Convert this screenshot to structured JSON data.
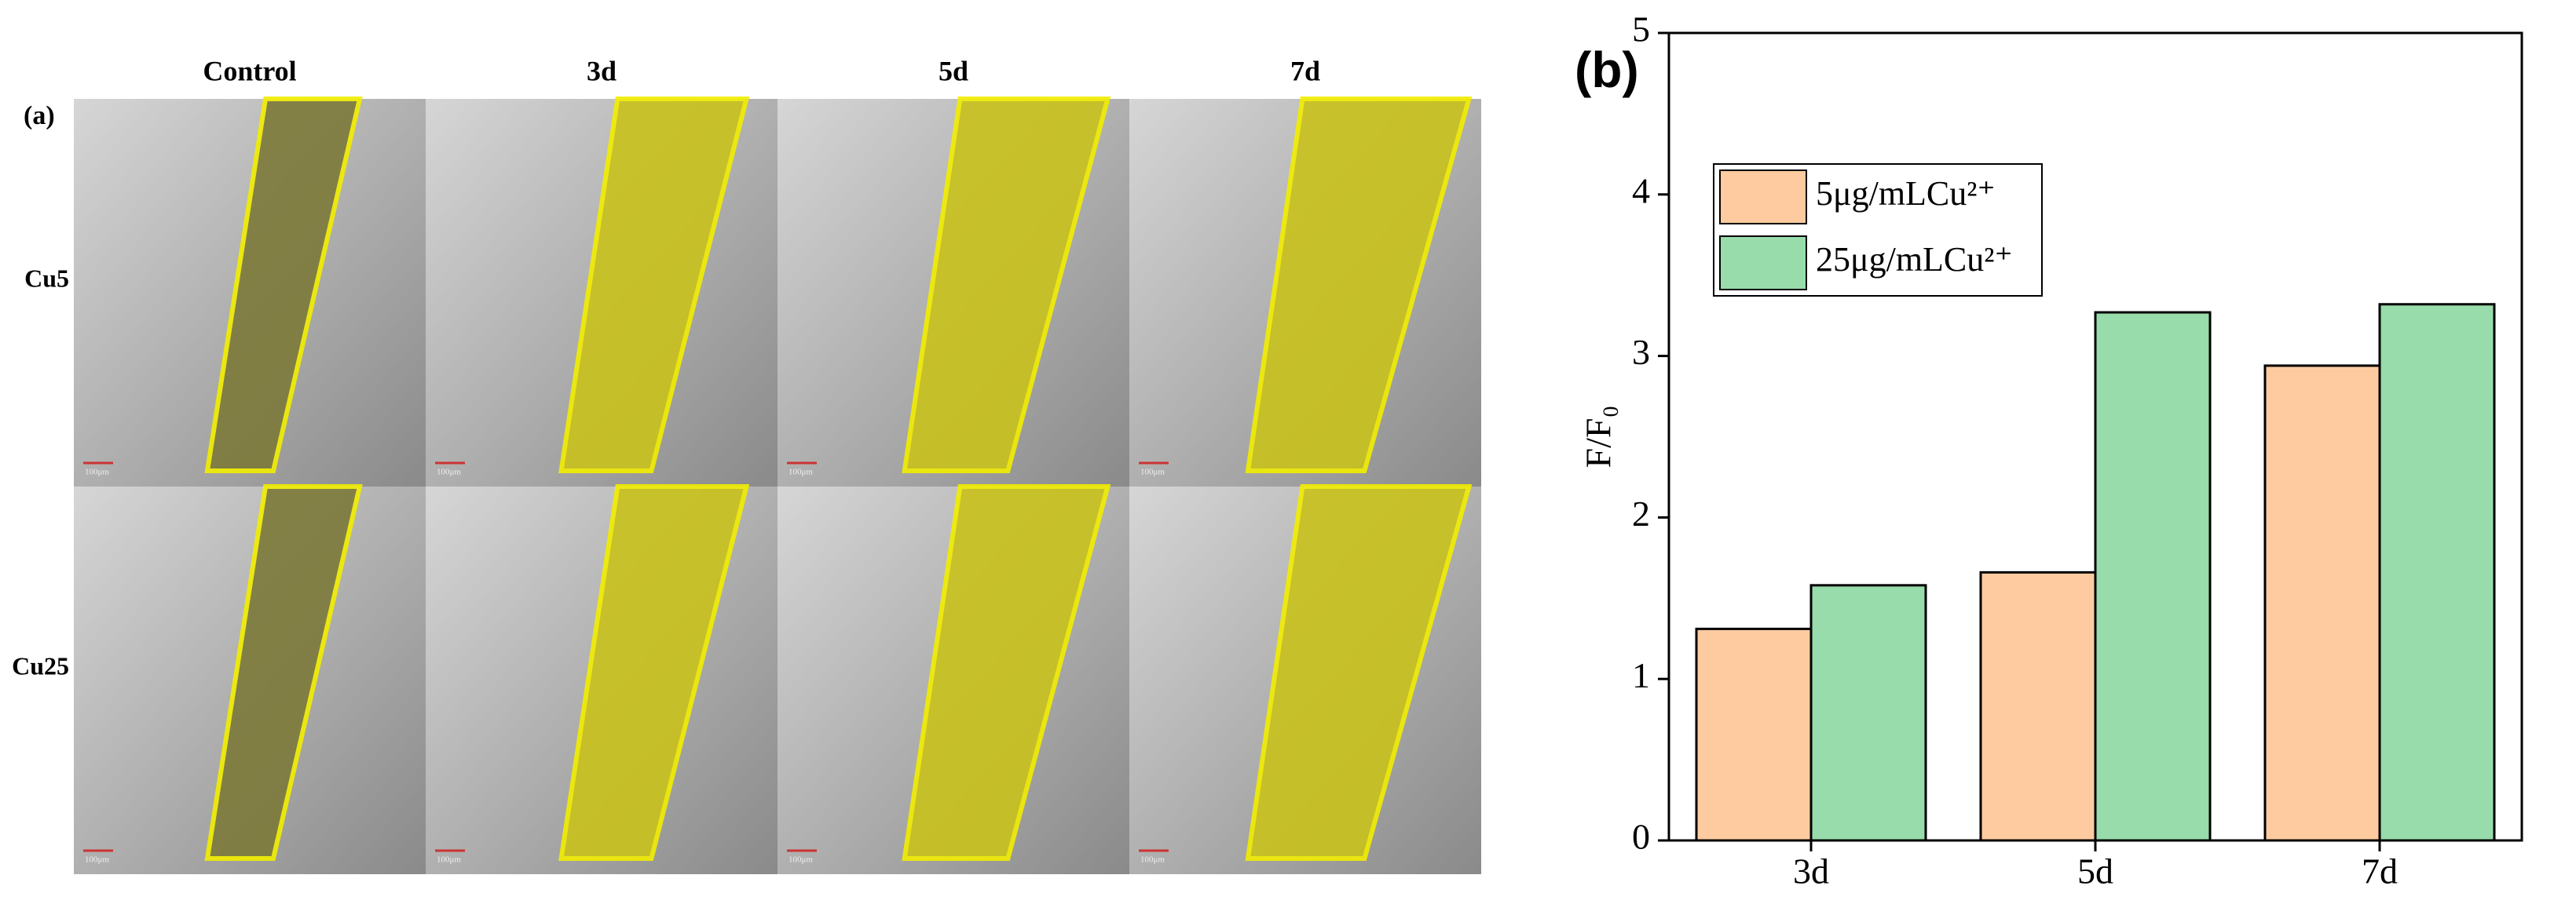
{
  "panel_a": {
    "label": "(a)",
    "columns": [
      "Control",
      "3d",
      "5d",
      "7d"
    ],
    "rows": [
      "Cu5",
      "Cu25"
    ],
    "scale_label": "100μm"
  },
  "chart_data": {
    "type": "bar",
    "panel_label": "(b)",
    "y_label": "F/F₀",
    "categories": [
      "3d",
      "5d",
      "7d"
    ],
    "series": [
      {
        "name": "5μg/mLCu²⁺",
        "color": "#fdcb9f",
        "values": [
          1.31,
          1.66,
          2.94
        ]
      },
      {
        "name": "25μg/mLCu²⁺",
        "color": "#97dcaa",
        "values": [
          1.58,
          3.27,
          3.32
        ]
      }
    ],
    "ylim": [
      0,
      5
    ],
    "yticks": [
      0,
      1,
      2,
      3,
      4,
      5
    ],
    "grid": false
  }
}
